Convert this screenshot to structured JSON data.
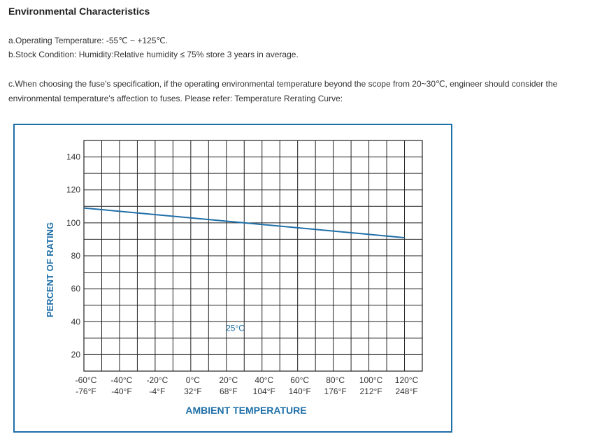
{
  "heading": "Environmental Characteristics",
  "lines": {
    "a": "a.Operating Temperature: -55℃ ~ +125℃.",
    "b": "b.Stock Condition: Humidity:Relative humidity ≤ 75% store 3 years in average.",
    "c1": "c.When choosing the fuse's specification, if the operating environmental temperature beyond the scope from 20~30℃, engineer should consider the",
    "c2": "environmental temperature's affection to fuses. Please refer: Temperature Rerating Curve:"
  },
  "colors": {
    "accent": "#1f6fa8",
    "grid": "#222222"
  },
  "chart_data": {
    "type": "line",
    "title": "",
    "xlabel": "AMBIENT TEMPERATURE",
    "ylabel": "PERCENT OF RATING",
    "xlim": [
      -60,
      130
    ],
    "ylim": [
      10,
      150
    ],
    "grid": true,
    "yticks": [
      20,
      40,
      60,
      80,
      100,
      120,
      140
    ],
    "xticks": [
      {
        "c": -60,
        "label_c": "-60°C",
        "label_f": "-76°F"
      },
      {
        "c": -40,
        "label_c": "-40°C",
        "label_f": "-40°F"
      },
      {
        "c": -20,
        "label_c": "-20°C",
        "label_f": "-4°F"
      },
      {
        "c": 0,
        "label_c": "0°C",
        "label_f": "32°F"
      },
      {
        "c": 20,
        "label_c": "20°C",
        "label_f": "68°F"
      },
      {
        "c": 40,
        "label_c": "40°C",
        "label_f": "104°F"
      },
      {
        "c": 60,
        "label_c": "60°C",
        "label_f": "140°F"
      },
      {
        "c": 80,
        "label_c": "80°C",
        "label_f": "176°F"
      },
      {
        "c": 100,
        "label_c": "100°C",
        "label_f": "212°F"
      },
      {
        "c": 120,
        "label_c": "120°C",
        "label_f": "248°F"
      }
    ],
    "series": [
      {
        "x": [
          -60,
          120
        ],
        "y": [
          109,
          91
        ]
      }
    ],
    "annotations": [
      {
        "text": "25°C",
        "x": 25,
        "y": 36
      }
    ]
  }
}
